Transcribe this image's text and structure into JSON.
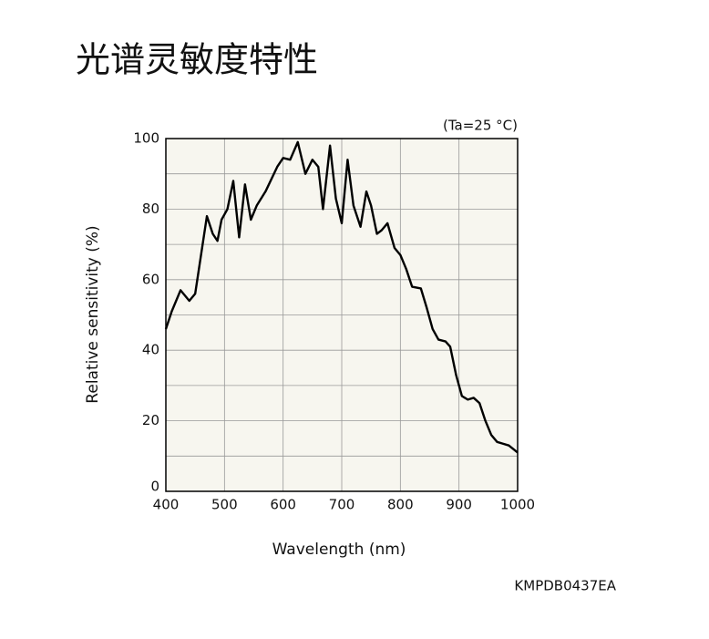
{
  "chart_data": {
    "type": "line",
    "title": "光谱灵敏度特性",
    "annotation": "(Ta=25 °C)",
    "footnote": "KMPDB0437EA",
    "x_label": "Wavelength (nm)",
    "y_label": "Relative sensitivity (%)",
    "x": [
      400,
      410,
      425,
      440,
      450,
      460,
      470,
      480,
      488,
      495,
      505,
      515,
      525,
      535,
      545,
      555,
      570,
      590,
      600,
      612,
      625,
      638,
      650,
      660,
      668,
      680,
      690,
      700,
      710,
      720,
      732,
      742,
      750,
      760,
      768,
      778,
      790,
      800,
      810,
      820,
      835,
      845,
      855,
      865,
      877,
      885,
      895,
      905,
      915,
      925,
      935,
      945,
      955,
      965,
      975,
      985,
      1000
    ],
    "series": [
      {
        "name": "Relative sensitivity",
        "color": "#000000",
        "values": [
          46,
          51,
          57,
          54,
          56,
          67,
          78,
          73,
          71,
          77,
          80,
          88,
          72,
          87,
          77,
          81,
          85,
          92,
          94.5,
          94,
          99,
          90,
          94,
          92,
          80,
          98,
          83,
          76,
          94,
          81,
          75,
          85,
          81,
          73,
          74,
          76,
          69,
          67,
          63,
          58,
          57.5,
          52,
          46,
          43,
          42.5,
          41,
          33,
          27,
          26,
          26.5,
          25,
          20,
          16,
          14,
          13.5,
          13,
          11
        ]
      }
    ],
    "xlim": [
      400,
      1000
    ],
    "xticks": [
      400,
      500,
      600,
      700,
      800,
      900,
      1000
    ],
    "ylim": [
      0,
      100
    ],
    "yticks": [
      0,
      20,
      40,
      60,
      80,
      100
    ],
    "yminor": [
      10,
      30,
      50,
      70,
      90
    ],
    "grid": true
  }
}
